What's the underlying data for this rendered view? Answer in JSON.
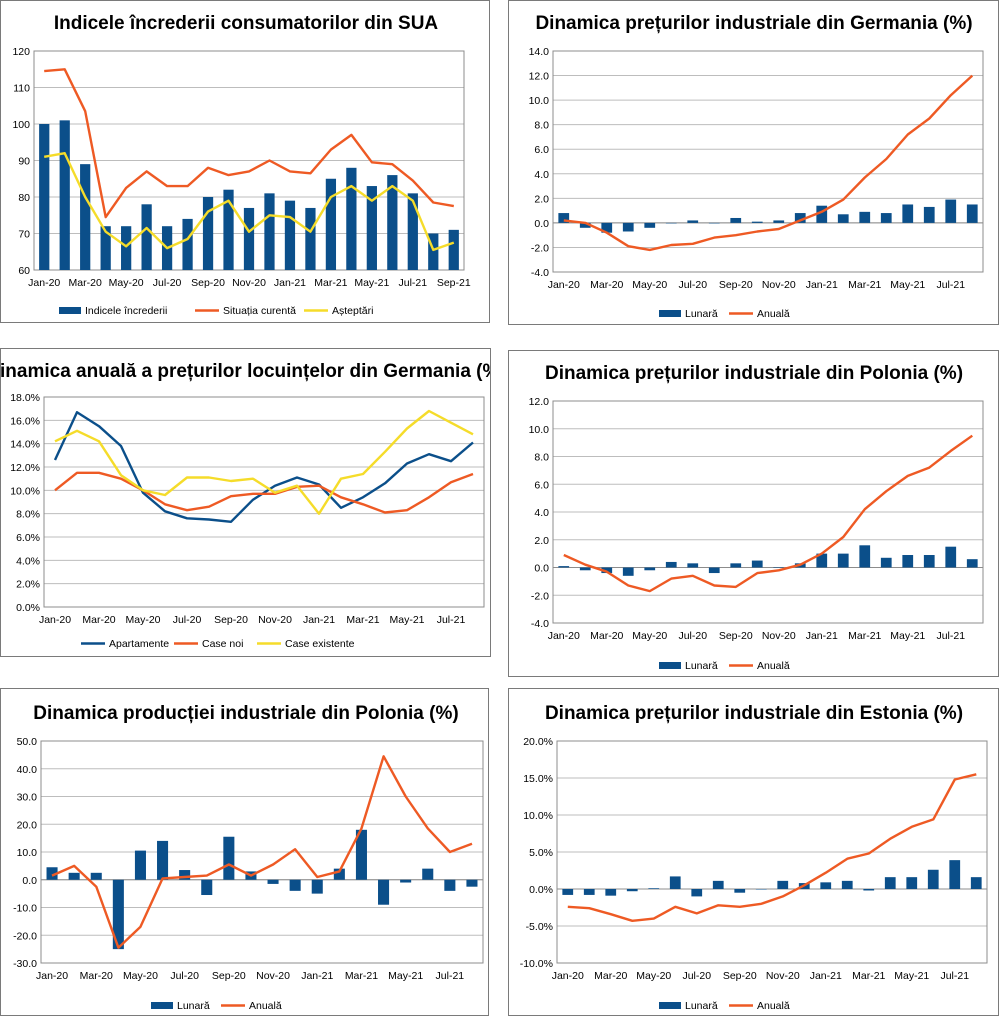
{
  "colors": {
    "blue": "#0b4f8a",
    "orange": "#ee5a24",
    "yellow": "#f5dc2a",
    "grid": "#bdbdbd"
  },
  "chart_data": [
    {
      "type": "bar",
      "title": "Indicele încrederii consumatorilor din SUA",
      "categories": [
        "Jan-20",
        "Feb-20",
        "Mar-20",
        "Apr-20",
        "May-20",
        "Jun-20",
        "Jul-20",
        "Aug-20",
        "Sep-20",
        "Oct-20",
        "Nov-20",
        "Dec-20",
        "Jan-21",
        "Feb-21",
        "Mar-21",
        "Apr-21",
        "May-21",
        "Jun-21",
        "Jul-21",
        "Aug-21",
        "Sep-21"
      ],
      "xlabels": [
        "Jan-20",
        "Mar-20",
        "May-20",
        "Jul-20",
        "Sep-20",
        "Nov-20",
        "Jan-21",
        "Mar-21",
        "May-21",
        "Jul-21",
        "Sep-21"
      ],
      "ylim": [
        60,
        120
      ],
      "ystep": 10,
      "yticks": [
        "60",
        "70",
        "80",
        "90",
        "100",
        "110",
        "120"
      ],
      "series": [
        {
          "name": "Indicele încrederii",
          "kind": "bar",
          "color": "#0b4f8a",
          "values": [
            100,
            101,
            89,
            72,
            72,
            78,
            72,
            74,
            80,
            82,
            77,
            81,
            79,
            77,
            85,
            88,
            83,
            86,
            81,
            70,
            71
          ]
        },
        {
          "name": "Situația curentă",
          "kind": "line",
          "color": "#ee5a24",
          "values": [
            114.5,
            115,
            103.5,
            74.5,
            82.5,
            87,
            83,
            83,
            88,
            86,
            87,
            90,
            87,
            86.5,
            93,
            97,
            89.5,
            89,
            84.5,
            78.5,
            77.5
          ]
        },
        {
          "name": "Așteptări",
          "kind": "line",
          "color": "#f5dc2a",
          "values": [
            91,
            92,
            80,
            70.5,
            66.5,
            71.5,
            66,
            68.5,
            76,
            79,
            70.5,
            75,
            74.5,
            70.5,
            80,
            83,
            79,
            83,
            79,
            65.5,
            67.5
          ]
        }
      ]
    },
    {
      "type": "bar",
      "title": "Dinamica prețurilor industriale din Germania (%)",
      "categories": [
        "Jan-20",
        "Feb-20",
        "Mar-20",
        "Apr-20",
        "May-20",
        "Jun-20",
        "Jul-20",
        "Aug-20",
        "Sep-20",
        "Oct-20",
        "Nov-20",
        "Dec-20",
        "Jan-21",
        "Feb-21",
        "Mar-21",
        "Apr-21",
        "May-21",
        "Jun-21",
        "Jul-21",
        "Aug-21"
      ],
      "xlabels": [
        "Jan-20",
        "Mar-20",
        "May-20",
        "Jul-20",
        "Sep-20",
        "Nov-20",
        "Jan-21",
        "Mar-21",
        "May-21",
        "Jul-21"
      ],
      "ylim": [
        -4,
        14
      ],
      "ystep": 2,
      "yticks": [
        "-4.0",
        "-2.0",
        "0.0",
        "2.0",
        "4.0",
        "6.0",
        "8.0",
        "10.0",
        "12.0",
        "14.0"
      ],
      "series": [
        {
          "name": "Lunară",
          "kind": "bar",
          "color": "#0b4f8a",
          "values": [
            0.8,
            -0.4,
            -0.8,
            -0.7,
            -0.4,
            0.0,
            0.2,
            0.0,
            0.4,
            0.1,
            0.2,
            0.8,
            1.4,
            0.7,
            0.9,
            0.8,
            1.5,
            1.3,
            1.9,
            1.5
          ]
        },
        {
          "name": "Anuală",
          "kind": "line",
          "color": "#ee5a24",
          "values": [
            0.2,
            0.0,
            -0.8,
            -1.9,
            -2.2,
            -1.8,
            -1.7,
            -1.2,
            -1.0,
            -0.7,
            -0.5,
            0.2,
            0.9,
            1.9,
            3.7,
            5.2,
            7.2,
            8.5,
            10.4,
            12.0
          ]
        }
      ]
    },
    {
      "type": "line",
      "title": "Dinamica anuală a prețurilor locuințelor din Germania (%)",
      "categories": [
        "Jan-20",
        "Feb-20",
        "Mar-20",
        "Apr-20",
        "May-20",
        "Jun-20",
        "Jul-20",
        "Aug-20",
        "Sep-20",
        "Oct-20",
        "Nov-20",
        "Dec-20",
        "Jan-21",
        "Feb-21",
        "Mar-21",
        "Apr-21",
        "May-21",
        "Jun-21",
        "Jul-21",
        "Aug-21"
      ],
      "xlabels": [
        "Jan-20",
        "Mar-20",
        "May-20",
        "Jul-20",
        "Sep-20",
        "Nov-20",
        "Jan-21",
        "Mar-21",
        "May-21",
        "Jul-21"
      ],
      "ylim": [
        0,
        18
      ],
      "ystep": 2,
      "yticks": [
        "0.0%",
        "2.0%",
        "4.0%",
        "6.0%",
        "8.0%",
        "10.0%",
        "12.0%",
        "14.0%",
        "16.0%",
        "18.0%"
      ],
      "series": [
        {
          "name": "Apartamente",
          "kind": "line",
          "color": "#0b4f8a",
          "values": [
            12.6,
            16.7,
            15.5,
            13.8,
            9.8,
            8.2,
            7.6,
            7.5,
            7.3,
            9.2,
            10.4,
            11.1,
            10.5,
            8.5,
            9.4,
            10.6,
            12.3,
            13.1,
            12.5,
            14.1
          ]
        },
        {
          "name": "Case noi",
          "kind": "line",
          "color": "#ee5a24",
          "values": [
            10.0,
            11.5,
            11.5,
            11.0,
            10.0,
            8.8,
            8.3,
            8.6,
            9.5,
            9.7,
            9.7,
            10.3,
            10.4,
            9.4,
            8.8,
            8.1,
            8.3,
            9.4,
            10.7,
            11.4
          ]
        },
        {
          "name": "Case existente",
          "kind": "line",
          "color": "#f5dc2a",
          "values": [
            14.2,
            15.1,
            14.2,
            11.3,
            10.0,
            9.6,
            11.1,
            11.1,
            10.8,
            11.0,
            9.8,
            10.4,
            8.0,
            11.0,
            11.4,
            13.3,
            15.3,
            16.8,
            15.8,
            14.8
          ]
        }
      ]
    },
    {
      "type": "bar",
      "title": "Dinamica prețurilor industriale din Polonia (%)",
      "categories": [
        "Jan-20",
        "Feb-20",
        "Mar-20",
        "Apr-20",
        "May-20",
        "Jun-20",
        "Jul-20",
        "Aug-20",
        "Sep-20",
        "Oct-20",
        "Nov-20",
        "Dec-20",
        "Jan-21",
        "Feb-21",
        "Mar-21",
        "Apr-21",
        "May-21",
        "Jun-21",
        "Jul-21",
        "Aug-21"
      ],
      "xlabels": [
        "Jan-20",
        "Mar-20",
        "May-20",
        "Jul-20",
        "Sep-20",
        "Nov-20",
        "Jan-21",
        "Mar-21",
        "May-21",
        "Jul-21"
      ],
      "ylim": [
        -4,
        12
      ],
      "ystep": 2,
      "yticks": [
        "-4.0",
        "-2.0",
        "0.0",
        "2.0",
        "4.0",
        "6.0",
        "8.0",
        "10.0",
        "12.0"
      ],
      "series": [
        {
          "name": "Lunară",
          "kind": "bar",
          "color": "#0b4f8a",
          "values": [
            0.1,
            -0.2,
            -0.4,
            -0.6,
            -0.2,
            0.4,
            0.3,
            -0.4,
            0.3,
            0.5,
            0.0,
            0.3,
            1.0,
            1.0,
            1.6,
            0.7,
            0.9,
            0.9,
            1.5,
            0.6
          ]
        },
        {
          "name": "Anuală",
          "kind": "line",
          "color": "#ee5a24",
          "values": [
            0.9,
            0.2,
            -0.3,
            -1.3,
            -1.7,
            -0.8,
            -0.6,
            -1.3,
            -1.4,
            -0.4,
            -0.2,
            0.2,
            1.0,
            2.2,
            4.2,
            5.5,
            6.6,
            7.2,
            8.4,
            9.5
          ]
        }
      ]
    },
    {
      "type": "bar",
      "title": "Dinamica producției industriale din Polonia (%)",
      "categories": [
        "Jan-20",
        "Feb-20",
        "Mar-20",
        "Apr-20",
        "May-20",
        "Jun-20",
        "Jul-20",
        "Aug-20",
        "Sep-20",
        "Oct-20",
        "Nov-20",
        "Dec-20",
        "Jan-21",
        "Feb-21",
        "Mar-21",
        "Apr-21",
        "May-21",
        "Jun-21",
        "Jul-21",
        "Aug-21"
      ],
      "xlabels": [
        "Jan-20",
        "Mar-20",
        "May-20",
        "Jul-20",
        "Sep-20",
        "Nov-20",
        "Jan-21",
        "Mar-21",
        "May-21",
        "Jul-21"
      ],
      "ylim": [
        -30,
        50
      ],
      "ystep": 10,
      "yticks": [
        "-30.0",
        "-20.0",
        "-10.0",
        "0.0",
        "10.0",
        "20.0",
        "30.0",
        "40.0",
        "50.0"
      ],
      "series": [
        {
          "name": "Lunară",
          "kind": "bar",
          "color": "#0b4f8a",
          "values": [
            4.5,
            2.5,
            2.5,
            -25.0,
            10.5,
            14.0,
            3.5,
            -5.5,
            15.5,
            3.0,
            -1.5,
            -4.0,
            -5.0,
            4.0,
            18.0,
            -9.0,
            -1.0,
            4.0,
            -4.0,
            -2.5
          ]
        },
        {
          "name": "Anuală",
          "kind": "line",
          "color": "#ee5a24",
          "values": [
            1.5,
            5.0,
            -2.5,
            -24.5,
            -17.0,
            0.5,
            1.0,
            1.5,
            5.5,
            1.5,
            5.5,
            11.0,
            1.0,
            3.0,
            18.5,
            44.5,
            30.0,
            18.5,
            10.0,
            13.0
          ]
        }
      ]
    },
    {
      "type": "bar",
      "title": "Dinamica prețurilor industriale din Estonia (%)",
      "categories": [
        "Jan-20",
        "Feb-20",
        "Mar-20",
        "Apr-20",
        "May-20",
        "Jun-20",
        "Jul-20",
        "Aug-20",
        "Sep-20",
        "Oct-20",
        "Nov-20",
        "Dec-20",
        "Jan-21",
        "Feb-21",
        "Mar-21",
        "Apr-21",
        "May-21",
        "Jun-21",
        "Jul-21",
        "Aug-21"
      ],
      "xlabels": [
        "Jan-20",
        "Mar-20",
        "May-20",
        "Jul-20",
        "Sep-20",
        "Nov-20",
        "Jan-21",
        "Mar-21",
        "May-21",
        "Jul-21"
      ],
      "ylim": [
        -10,
        20
      ],
      "ystep": 5,
      "yticks": [
        "-10.0%",
        "-5.0%",
        "0.0%",
        "5.0%",
        "10.0%",
        "15.0%",
        "20.0%"
      ],
      "series": [
        {
          "name": "Lunară",
          "kind": "bar",
          "color": "#0b4f8a",
          "values": [
            -0.8,
            -0.8,
            -0.9,
            -0.3,
            0.1,
            1.7,
            -1.0,
            1.1,
            -0.5,
            0.0,
            1.1,
            0.8,
            0.9,
            1.1,
            -0.2,
            1.6,
            1.6,
            2.6,
            3.9,
            1.6
          ]
        },
        {
          "name": "Anuală",
          "kind": "line",
          "color": "#ee5a24",
          "values": [
            -2.4,
            -2.6,
            -3.4,
            -4.3,
            -4.0,
            -2.4,
            -3.3,
            -2.2,
            -2.4,
            -2.0,
            -1.0,
            0.5,
            2.2,
            4.1,
            4.8,
            6.8,
            8.4,
            9.4,
            14.8,
            15.5
          ]
        }
      ]
    }
  ]
}
